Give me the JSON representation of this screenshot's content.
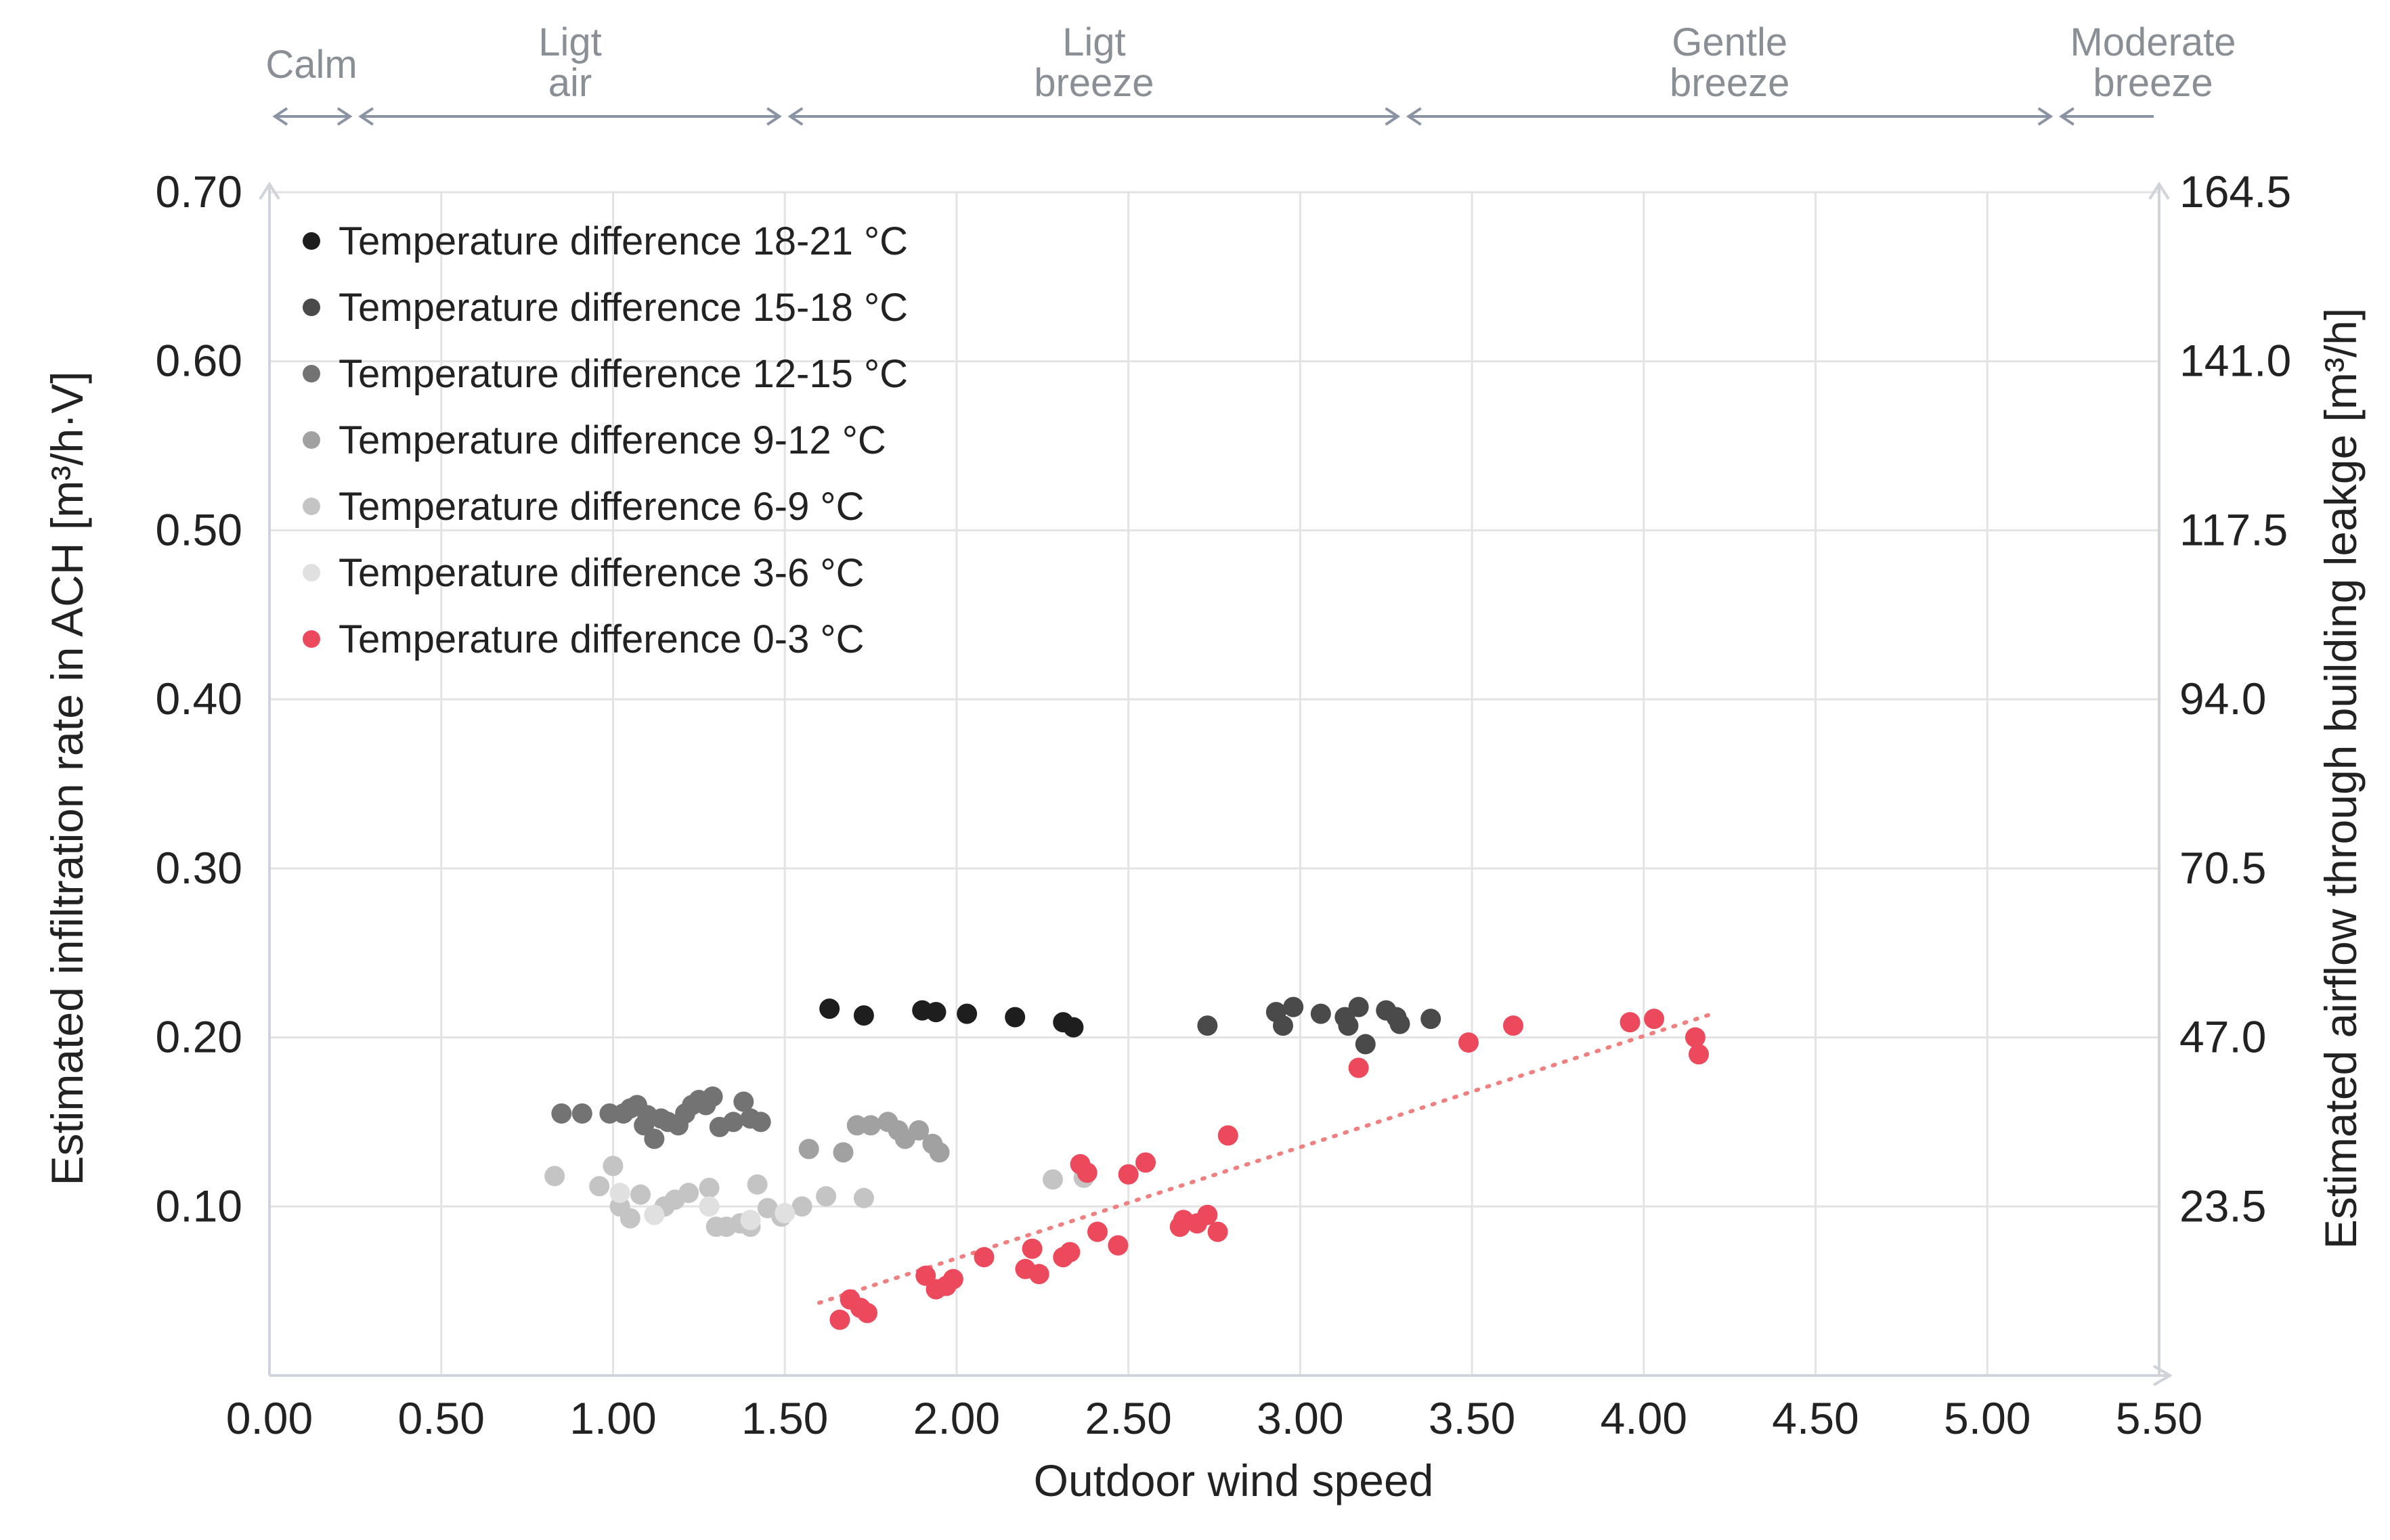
{
  "chart_data": {
    "type": "scatter",
    "title": "",
    "xlabel": "Outdoor wind speed",
    "ylabel": "Estimated infiltration rate in ACH [m³/h·V]",
    "y2label": "Estimated airflow through building leakge [m³/h]",
    "xlim": [
      0,
      5.5
    ],
    "ylim": [
      0,
      0.7
    ],
    "x_ticks": [
      "0.00",
      "0.50",
      "1.00",
      "1.50",
      "2.00",
      "2.50",
      "3.00",
      "3.50",
      "4.00",
      "4.50",
      "5.00",
      "5.50"
    ],
    "y_ticks": [
      "0.10",
      "0.20",
      "0.30",
      "0.40",
      "0.50",
      "0.60",
      "0.70"
    ],
    "y2_ticks": [
      "23.5",
      "47.0",
      "70.5",
      "94.0",
      "117.5",
      "141.0",
      "164.5"
    ],
    "grid": true,
    "legend_position": "top-left",
    "wind_bands": [
      {
        "label_lines": [
          "Calm"
        ],
        "x_range": [
          0,
          0.25
        ]
      },
      {
        "label_lines": [
          "Ligt",
          "air"
        ],
        "x_range": [
          0.25,
          1.5
        ]
      },
      {
        "label_lines": [
          "Ligt",
          "breeze"
        ],
        "x_range": [
          1.5,
          3.3
        ]
      },
      {
        "label_lines": [
          "Gentle",
          "breeze"
        ],
        "x_range": [
          3.3,
          5.2
        ]
      },
      {
        "label_lines": [
          "Moderate",
          "breeze"
        ],
        "x_range": [
          5.2,
          5.5
        ]
      }
    ],
    "series": [
      {
        "name": "Temperature difference 18-21 °C",
        "color": "#1e1e1e",
        "x": [
          1.63,
          1.73,
          1.9,
          1.94,
          2.03,
          2.17,
          2.31,
          2.34
        ],
        "y": [
          0.217,
          0.213,
          0.216,
          0.215,
          0.214,
          0.212,
          0.209,
          0.206
        ]
      },
      {
        "name": "Temperature difference 15-18 °C",
        "color": "#4a4a4a",
        "x": [
          2.73,
          2.93,
          2.95,
          2.98,
          3.06,
          3.13,
          3.14,
          3.17,
          3.19,
          3.25,
          3.28,
          3.29,
          3.38
        ],
        "y": [
          0.207,
          0.215,
          0.207,
          0.218,
          0.214,
          0.212,
          0.207,
          0.218,
          0.196,
          0.216,
          0.212,
          0.208,
          0.211
        ]
      },
      {
        "name": "Temperature difference 12-15 °C",
        "color": "#737373",
        "x": [
          0.85,
          0.91,
          0.99,
          1.03,
          1.05,
          1.07,
          1.09,
          1.1,
          1.12,
          1.14,
          1.16,
          1.19,
          1.21,
          1.23,
          1.25,
          1.27,
          1.29,
          1.31,
          1.35,
          1.38,
          1.4,
          1.43
        ],
        "y": [
          0.155,
          0.155,
          0.155,
          0.155,
          0.158,
          0.16,
          0.148,
          0.154,
          0.14,
          0.152,
          0.15,
          0.148,
          0.155,
          0.16,
          0.163,
          0.16,
          0.165,
          0.147,
          0.15,
          0.162,
          0.152,
          0.15
        ]
      },
      {
        "name": "Temperature difference 9-12 °C",
        "color": "#a1a1a1",
        "x": [
          1.57,
          1.67,
          1.71,
          1.75,
          1.8,
          1.83,
          1.85,
          1.89,
          1.93,
          1.95
        ],
        "y": [
          0.134,
          0.132,
          0.148,
          0.148,
          0.15,
          0.145,
          0.14,
          0.145,
          0.137,
          0.132
        ]
      },
      {
        "name": "Temperature difference 6-9 °C",
        "color": "#c4c4c4",
        "x": [
          0.83,
          0.96,
          1.0,
          1.02,
          1.05,
          1.08,
          1.15,
          1.18,
          1.22,
          1.28,
          1.3,
          1.33,
          1.37,
          1.4,
          1.42,
          1.45,
          1.49,
          1.55,
          1.62,
          1.73,
          2.28,
          2.37
        ],
        "y": [
          0.118,
          0.112,
          0.124,
          0.1,
          0.093,
          0.107,
          0.1,
          0.104,
          0.108,
          0.111,
          0.088,
          0.088,
          0.09,
          0.088,
          0.113,
          0.099,
          0.094,
          0.1,
          0.106,
          0.105,
          0.116,
          0.117
        ]
      },
      {
        "name": "Temperature difference 3-6 °C",
        "color": "#e0e0e0",
        "x": [
          1.02,
          1.12,
          1.28,
          1.4,
          1.5
        ],
        "y": [
          0.108,
          0.095,
          0.1,
          0.092,
          0.096
        ]
      },
      {
        "name": "Temperature difference 0-3 °C",
        "color": "#ec4a5c",
        "x": [
          1.66,
          1.69,
          1.72,
          1.74,
          1.91,
          1.94,
          1.97,
          1.99,
          2.08,
          2.2,
          2.22,
          2.24,
          2.31,
          2.33,
          2.36,
          2.38,
          2.41,
          2.47,
          2.5,
          2.55,
          2.65,
          2.66,
          2.7,
          2.73,
          2.76,
          2.79,
          3.17,
          3.49,
          3.62,
          3.96,
          4.03,
          4.15,
          4.16
        ],
        "y": [
          0.033,
          0.045,
          0.04,
          0.037,
          0.059,
          0.051,
          0.053,
          0.057,
          0.07,
          0.063,
          0.075,
          0.06,
          0.07,
          0.073,
          0.125,
          0.12,
          0.085,
          0.077,
          0.119,
          0.126,
          0.088,
          0.092,
          0.09,
          0.095,
          0.085,
          0.142,
          0.182,
          0.197,
          0.207,
          0.209,
          0.211,
          0.2,
          0.19
        ]
      }
    ],
    "trendline": {
      "series": "Temperature difference 0-3 °C",
      "x": [
        1.6,
        4.2
      ],
      "y": [
        0.043,
        0.214
      ]
    }
  }
}
